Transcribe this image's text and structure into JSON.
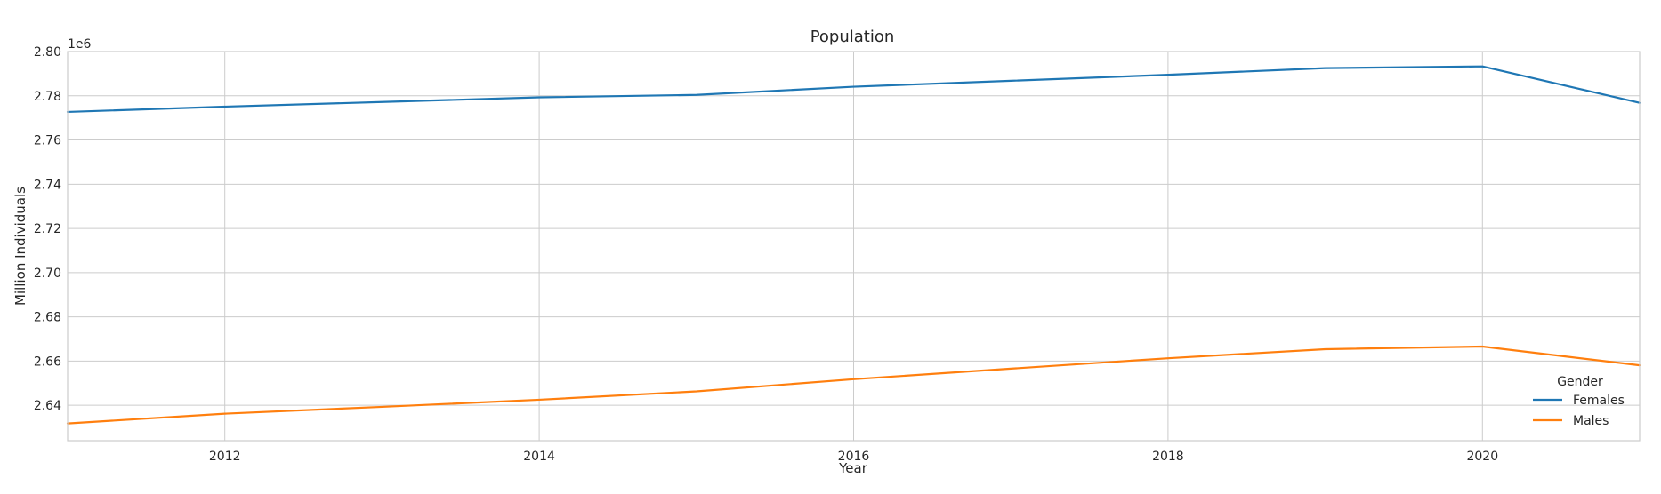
{
  "chart_data": {
    "type": "line",
    "title": "Population",
    "xlabel": "Year",
    "ylabel": "Million Individuals",
    "y_offset_label": "1e6",
    "xlim": [
      2011,
      2021
    ],
    "ylim": [
      2.624,
      2.8
    ],
    "x_ticks": [
      2012,
      2014,
      2016,
      2018,
      2020
    ],
    "y_ticks": [
      2.64,
      2.66,
      2.68,
      2.7,
      2.72,
      2.74,
      2.76,
      2.78,
      2.8
    ],
    "y_tick_labels": [
      "2.64",
      "2.66",
      "2.68",
      "2.70",
      "2.72",
      "2.74",
      "2.76",
      "2.78",
      "2.80"
    ],
    "x": [
      2011,
      2012,
      2013,
      2014,
      2015,
      2016,
      2017,
      2018,
      2019,
      2020,
      2021
    ],
    "grid": true,
    "legend": {
      "title": "Gender",
      "placement": "lower-right"
    },
    "series": [
      {
        "name": "Females",
        "color": "#1f77b4",
        "values": [
          2.7727,
          2.7751,
          2.7772,
          2.7793,
          2.7804,
          2.7841,
          2.7868,
          2.7895,
          2.7925,
          2.7933,
          2.7768
        ]
      },
      {
        "name": "Males",
        "color": "#ff7f0e",
        "values": [
          2.6318,
          2.6362,
          2.6393,
          2.6425,
          2.6463,
          2.6518,
          2.6566,
          2.6613,
          2.6654,
          2.6666,
          2.6581
        ]
      }
    ]
  }
}
